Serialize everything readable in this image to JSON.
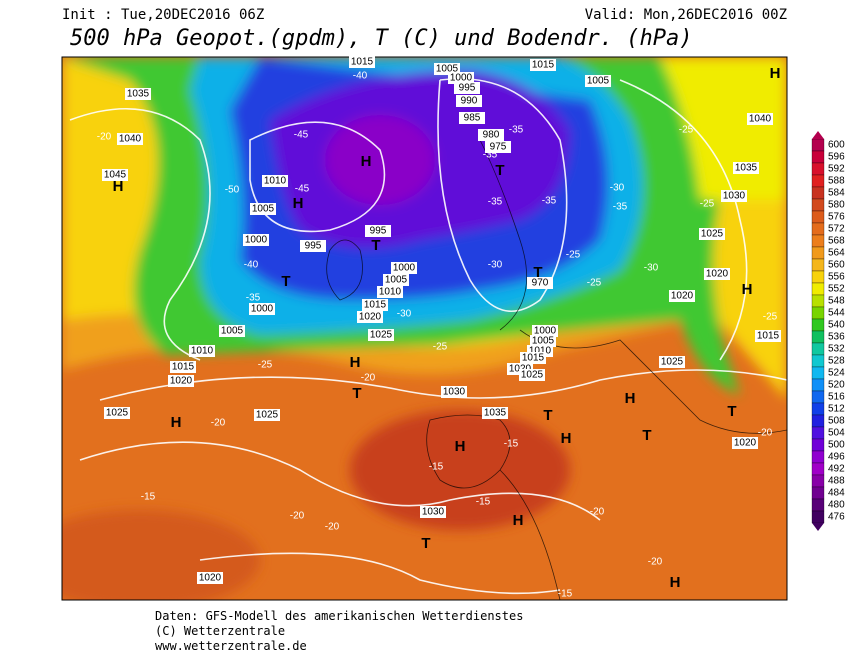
{
  "header": {
    "init": "Init : Tue,20DEC2016 06Z",
    "valid": "Valid: Mon,26DEC2016 00Z",
    "title": "500 hPa Geopot.(gpdm), T (C) und Bodendr. (hPa)"
  },
  "colorbar": {
    "labels": [
      600,
      596,
      592,
      588,
      584,
      580,
      576,
      572,
      568,
      564,
      560,
      556,
      552,
      548,
      544,
      540,
      536,
      532,
      528,
      524,
      520,
      516,
      512,
      508,
      504,
      500,
      496,
      492,
      488,
      484,
      480,
      476
    ],
    "colors": [
      "#b4004e",
      "#c8003a",
      "#d8102c",
      "#e02020",
      "#c83220",
      "#d24a1e",
      "#dc5c1c",
      "#e46c1c",
      "#ec7e1c",
      "#f09a1c",
      "#f4b61c",
      "#f8d20c",
      "#f0ec00",
      "#b8e000",
      "#78d400",
      "#30c820",
      "#10c060",
      "#10c8a0",
      "#10c8d0",
      "#10b8f0",
      "#1090f8",
      "#1068f0",
      "#1040e8",
      "#2020e0",
      "#5010e0",
      "#7000d8",
      "#9000d0",
      "#a000c8",
      "#8800a8",
      "#700090",
      "#580078",
      "#400060"
    ]
  },
  "map": {
    "isobar_labels": [
      "1035",
      "1040",
      "1045",
      "1010",
      "1005",
      "1000",
      "995",
      "995",
      "1000",
      "1005",
      "1010",
      "1015",
      "1020",
      "1025",
      "1000",
      "1005",
      "1010",
      "1015",
      "1020",
      "1025",
      "1025",
      "1030",
      "1035",
      "1030",
      "1020",
      "1015",
      "1005",
      "1000",
      "995",
      "990",
      "985",
      "980",
      "975",
      "970",
      "1015",
      "1005",
      "1035",
      "1030",
      "1025",
      "1020",
      "1020",
      "1040",
      "1000",
      "1005",
      "1010",
      "1015",
      "1020",
      "1025",
      "1025",
      "1020",
      "1015"
    ],
    "temperature_labels": [
      "-40",
      "-45",
      "-50",
      "-45",
      "-40",
      "-35",
      "-30",
      "-35",
      "-35",
      "-35",
      "-35",
      "-30",
      "-25",
      "-30",
      "-35",
      "-25",
      "-25",
      "-30",
      "-25",
      "-25",
      "-20",
      "-20",
      "-15",
      "-15",
      "-15",
      "-15",
      "-20",
      "-20",
      "-20",
      "-20",
      "-15",
      "-20",
      "-25",
      "-20",
      "-25"
    ],
    "centers": [
      "H",
      "H",
      "H",
      "H",
      "T",
      "T",
      "T",
      "T",
      "H",
      "H",
      "T",
      "H",
      "H",
      "T",
      "H",
      "H",
      "T",
      "T",
      "H",
      "T",
      "H"
    ]
  },
  "footer": {
    "line1": "Daten: GFS-Modell des amerikanischen Wetterdienstes",
    "line2": "(C) Wetterzentrale",
    "line3": "www.wetterzentrale.de"
  }
}
